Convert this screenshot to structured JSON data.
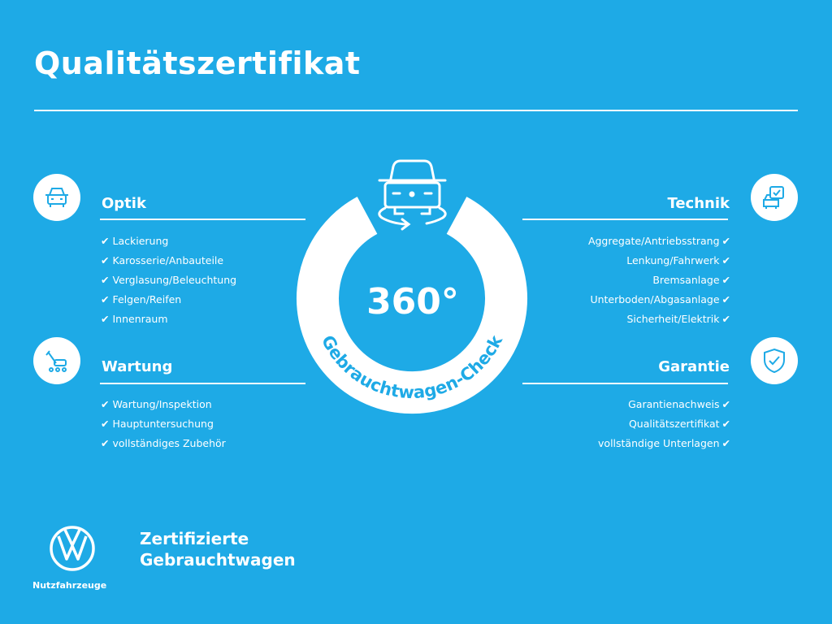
{
  "title": "Qualitätszertifikat",
  "colors": {
    "background": "#1eaae6",
    "foreground": "#ffffff"
  },
  "center": {
    "degrees": "360°",
    "label": "Gebrauchtwagen-Check",
    "icon": "car-rotate-icon"
  },
  "check": "✔",
  "sections": {
    "optik": {
      "heading": "Optik",
      "icon": "car-front-icon",
      "items": [
        "Lackierung",
        "Karosserie/Anbauteile",
        "Verglasung/Beleuchtung",
        "Felgen/Reifen",
        "Innenraum"
      ]
    },
    "wartung": {
      "heading": "Wartung",
      "icon": "service-tools-icon",
      "items": [
        "Wartung/Inspektion",
        "Hauptuntersuchung",
        "vollständiges Zubehör"
      ]
    },
    "technik": {
      "heading": "Technik",
      "icon": "checklist-car-icon",
      "items": [
        "Aggregate/Antriebsstrang",
        "Lenkung/Fahrwerk",
        "Bremsanlage",
        "Unterboden/Abgasanlage",
        "Sicherheit/Elektrik"
      ]
    },
    "garantie": {
      "heading": "Garantie",
      "icon": "shield-check-icon",
      "items": [
        "Garantienachweis",
        "Qualitätszertifikat",
        "vollständige Unterlagen"
      ]
    }
  },
  "footer": {
    "brand": "Nutzfahrzeuge",
    "line1": "Zertifizierte",
    "line2": "Gebrauchtwagen"
  }
}
